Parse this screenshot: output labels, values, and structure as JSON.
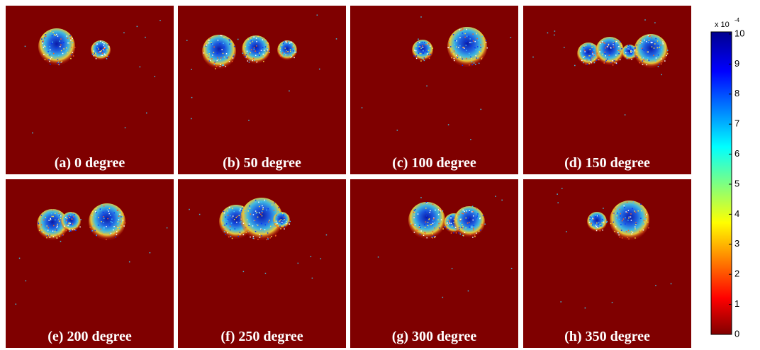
{
  "panels": [
    {
      "label": "(a) 0 degree"
    },
    {
      "label": "(b) 50 degree"
    },
    {
      "label": "(c) 100 degree"
    },
    {
      "label": "(d) 150 degree"
    },
    {
      "label": "(e) 200 degree"
    },
    {
      "label": "(f) 250 degree"
    },
    {
      "label": "(g) 300 degree"
    },
    {
      "label": "(h) 350 degree"
    }
  ],
  "colorbar": {
    "ticks": [
      "0",
      "1",
      "2",
      "3",
      "4",
      "5",
      "6",
      "7",
      "8",
      "9",
      "10"
    ],
    "multiplier": "x 10",
    "exponent": "-4"
  }
}
